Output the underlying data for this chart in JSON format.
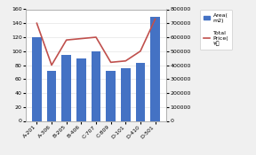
{
  "categories": [
    "A-201",
    "A-306",
    "B-205",
    "B-406",
    "C-707",
    "C-809",
    "D-101",
    "D-410",
    "D-501"
  ],
  "area_values": [
    120,
    72,
    95,
    90,
    100,
    72,
    75,
    83,
    149
  ],
  "price_values": [
    700000,
    400000,
    580000,
    590000,
    600000,
    420000,
    430000,
    500000,
    730000
  ],
  "bar_color": "#4472C4",
  "line_color": "#C0504D",
  "area_ylim": [
    0,
    160
  ],
  "area_yticks": [
    0,
    20,
    40,
    60,
    80,
    100,
    120,
    140,
    160
  ],
  "price_ylim": [
    0,
    800000
  ],
  "price_yticks": [
    0,
    100000,
    200000,
    300000,
    400000,
    500000,
    600000,
    700000,
    800000
  ],
  "bg_color": "#F0F0F0",
  "plot_bg_color": "#FFFFFF",
  "figsize": [
    2.88,
    1.75
  ],
  "dpi": 100
}
